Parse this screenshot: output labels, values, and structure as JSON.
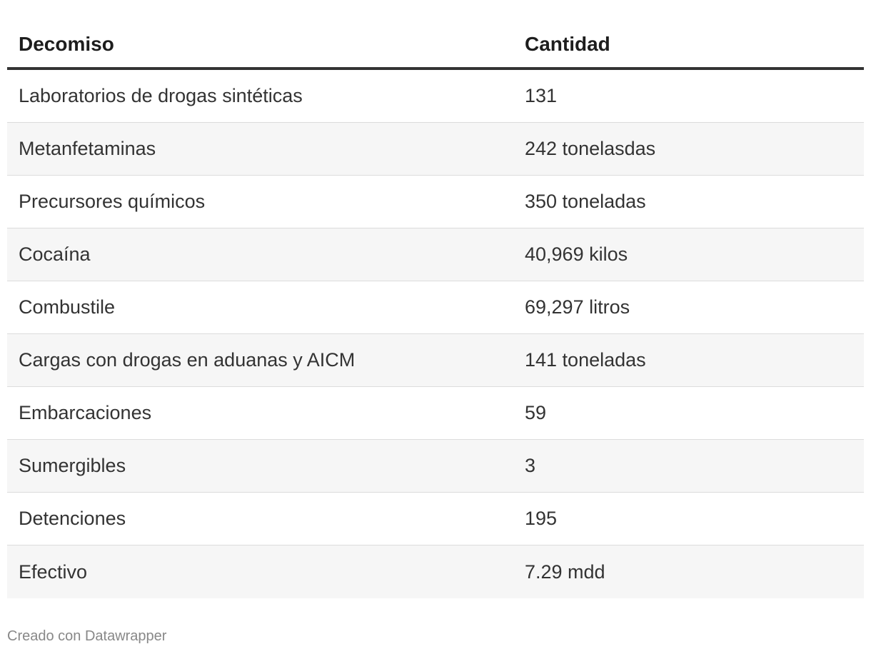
{
  "chart_data": {
    "type": "table",
    "columns": [
      "Decomiso",
      "Cantidad"
    ],
    "rows": [
      [
        "Laboratorios de drogas sintéticas",
        "131"
      ],
      [
        "Metanfetaminas",
        "242 tonelasdas"
      ],
      [
        "Precursores químicos",
        "350 toneladas"
      ],
      [
        "Cocaína",
        "40,969 kilos"
      ],
      [
        "Combustile",
        "69,297 litros"
      ],
      [
        "Cargas con drogas en aduanas y AICM",
        "141 toneladas"
      ],
      [
        "Embarcaciones",
        "59"
      ],
      [
        "Sumergibles",
        "3"
      ],
      [
        "Detenciones",
        "195"
      ],
      [
        "Efectivo",
        "7.29 mdd"
      ]
    ]
  },
  "footer": {
    "credit": "Creado con Datawrapper"
  },
  "colors": {
    "header_rule": "#333333",
    "row_alt_bg": "#f6f6f6",
    "row_divider": "#dcdcdc",
    "footer_text": "#888888"
  }
}
